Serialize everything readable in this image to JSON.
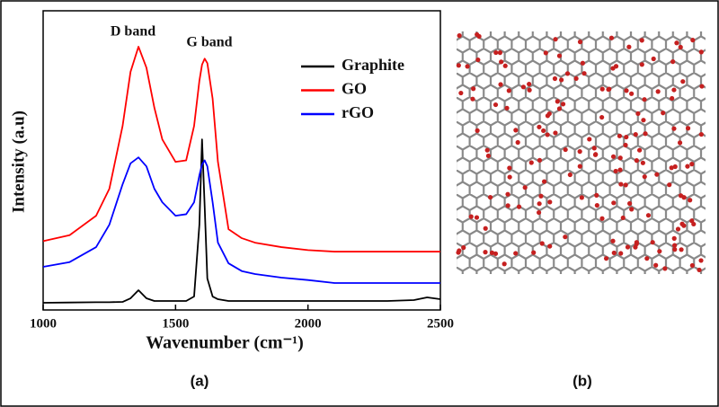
{
  "chart_data": {
    "type": "line",
    "xlabel": "Wavenumber (cm⁻¹)",
    "ylabel": "Intensity (a.u)",
    "annotations": [
      "D band",
      "G band"
    ],
    "captions": [
      "(a)",
      "(b)"
    ],
    "xlim": [
      1000,
      2500
    ],
    "xticks": [
      1000,
      1500,
      2000,
      2500
    ],
    "ylim": [
      0,
      100
    ],
    "legend": "upper right",
    "x": [
      1000,
      1100,
      1200,
      1250,
      1300,
      1330,
      1360,
      1390,
      1420,
      1450,
      1500,
      1540,
      1570,
      1590,
      1600,
      1610,
      1620,
      1640,
      1660,
      1700,
      1750,
      1800,
      1900,
      2000,
      2100,
      2200,
      2300,
      2400,
      2450,
      2500
    ],
    "series": [
      {
        "name": "Graphite",
        "color": "#000000",
        "values": [
          2.4,
          2.5,
          2.6,
          2.6,
          2.7,
          3.9,
          6.6,
          3.9,
          3,
          3,
          3,
          3,
          4.5,
          28.5,
          57,
          34.5,
          10.5,
          4.5,
          3.6,
          3,
          3,
          3,
          3,
          3,
          3,
          3,
          3,
          3.3,
          4.2,
          3.6
        ]
      },
      {
        "name": "GO",
        "color": "#ff0000",
        "values": [
          23,
          25,
          31.5,
          40.5,
          61.5,
          79.6,
          88,
          81,
          67.6,
          57,
          49.5,
          50,
          61.5,
          76.6,
          82,
          84,
          82.5,
          70.6,
          49.5,
          27,
          24,
          22.5,
          21,
          20,
          19.5,
          19.5,
          19.5,
          19.5,
          19.5,
          19.5
        ]
      },
      {
        "name": "rGO",
        "color": "#0000ff",
        "values": [
          14.4,
          16,
          21,
          28.5,
          42,
          49,
          51,
          48,
          40.5,
          36,
          31.5,
          32,
          36,
          45,
          48.6,
          50,
          48,
          36,
          22.5,
          15.6,
          13,
          12,
          10.8,
          10,
          9,
          9,
          9,
          9,
          9,
          9
        ]
      }
    ]
  }
}
